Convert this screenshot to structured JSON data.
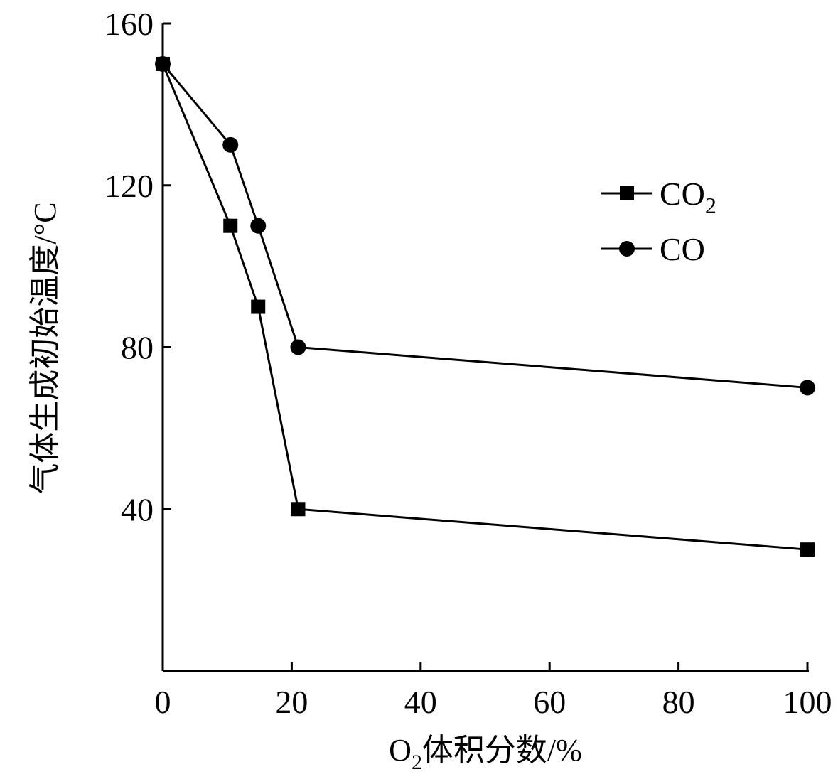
{
  "chart_data": {
    "type": "line",
    "xlabel": {
      "main": "O",
      "sub": "2",
      "rest": "体积分数/%"
    },
    "ylabel": "气体生成初始温度/°C",
    "xlim": [
      0,
      100
    ],
    "ylim": [
      0,
      160
    ],
    "xticks": [
      0,
      20,
      40,
      60,
      80,
      100
    ],
    "yticks": [
      40,
      80,
      120,
      160
    ],
    "x_tick_labels": [
      "0",
      "20",
      "40",
      "60",
      "80",
      "100"
    ],
    "y_tick_labels": [
      "40",
      "80",
      "120",
      "160"
    ],
    "grid": false,
    "legend_position": "upper-right",
    "series": [
      {
        "name": "CO",
        "name_sub": "2",
        "marker": "square",
        "x": [
          0,
          10.5,
          14.8,
          21,
          100
        ],
        "y": [
          150,
          110,
          90,
          40,
          30
        ]
      },
      {
        "name": "CO",
        "name_sub": "",
        "marker": "circle",
        "x": [
          0,
          10.5,
          14.8,
          21,
          100
        ],
        "y": [
          150,
          130,
          110,
          80,
          70
        ]
      }
    ]
  }
}
